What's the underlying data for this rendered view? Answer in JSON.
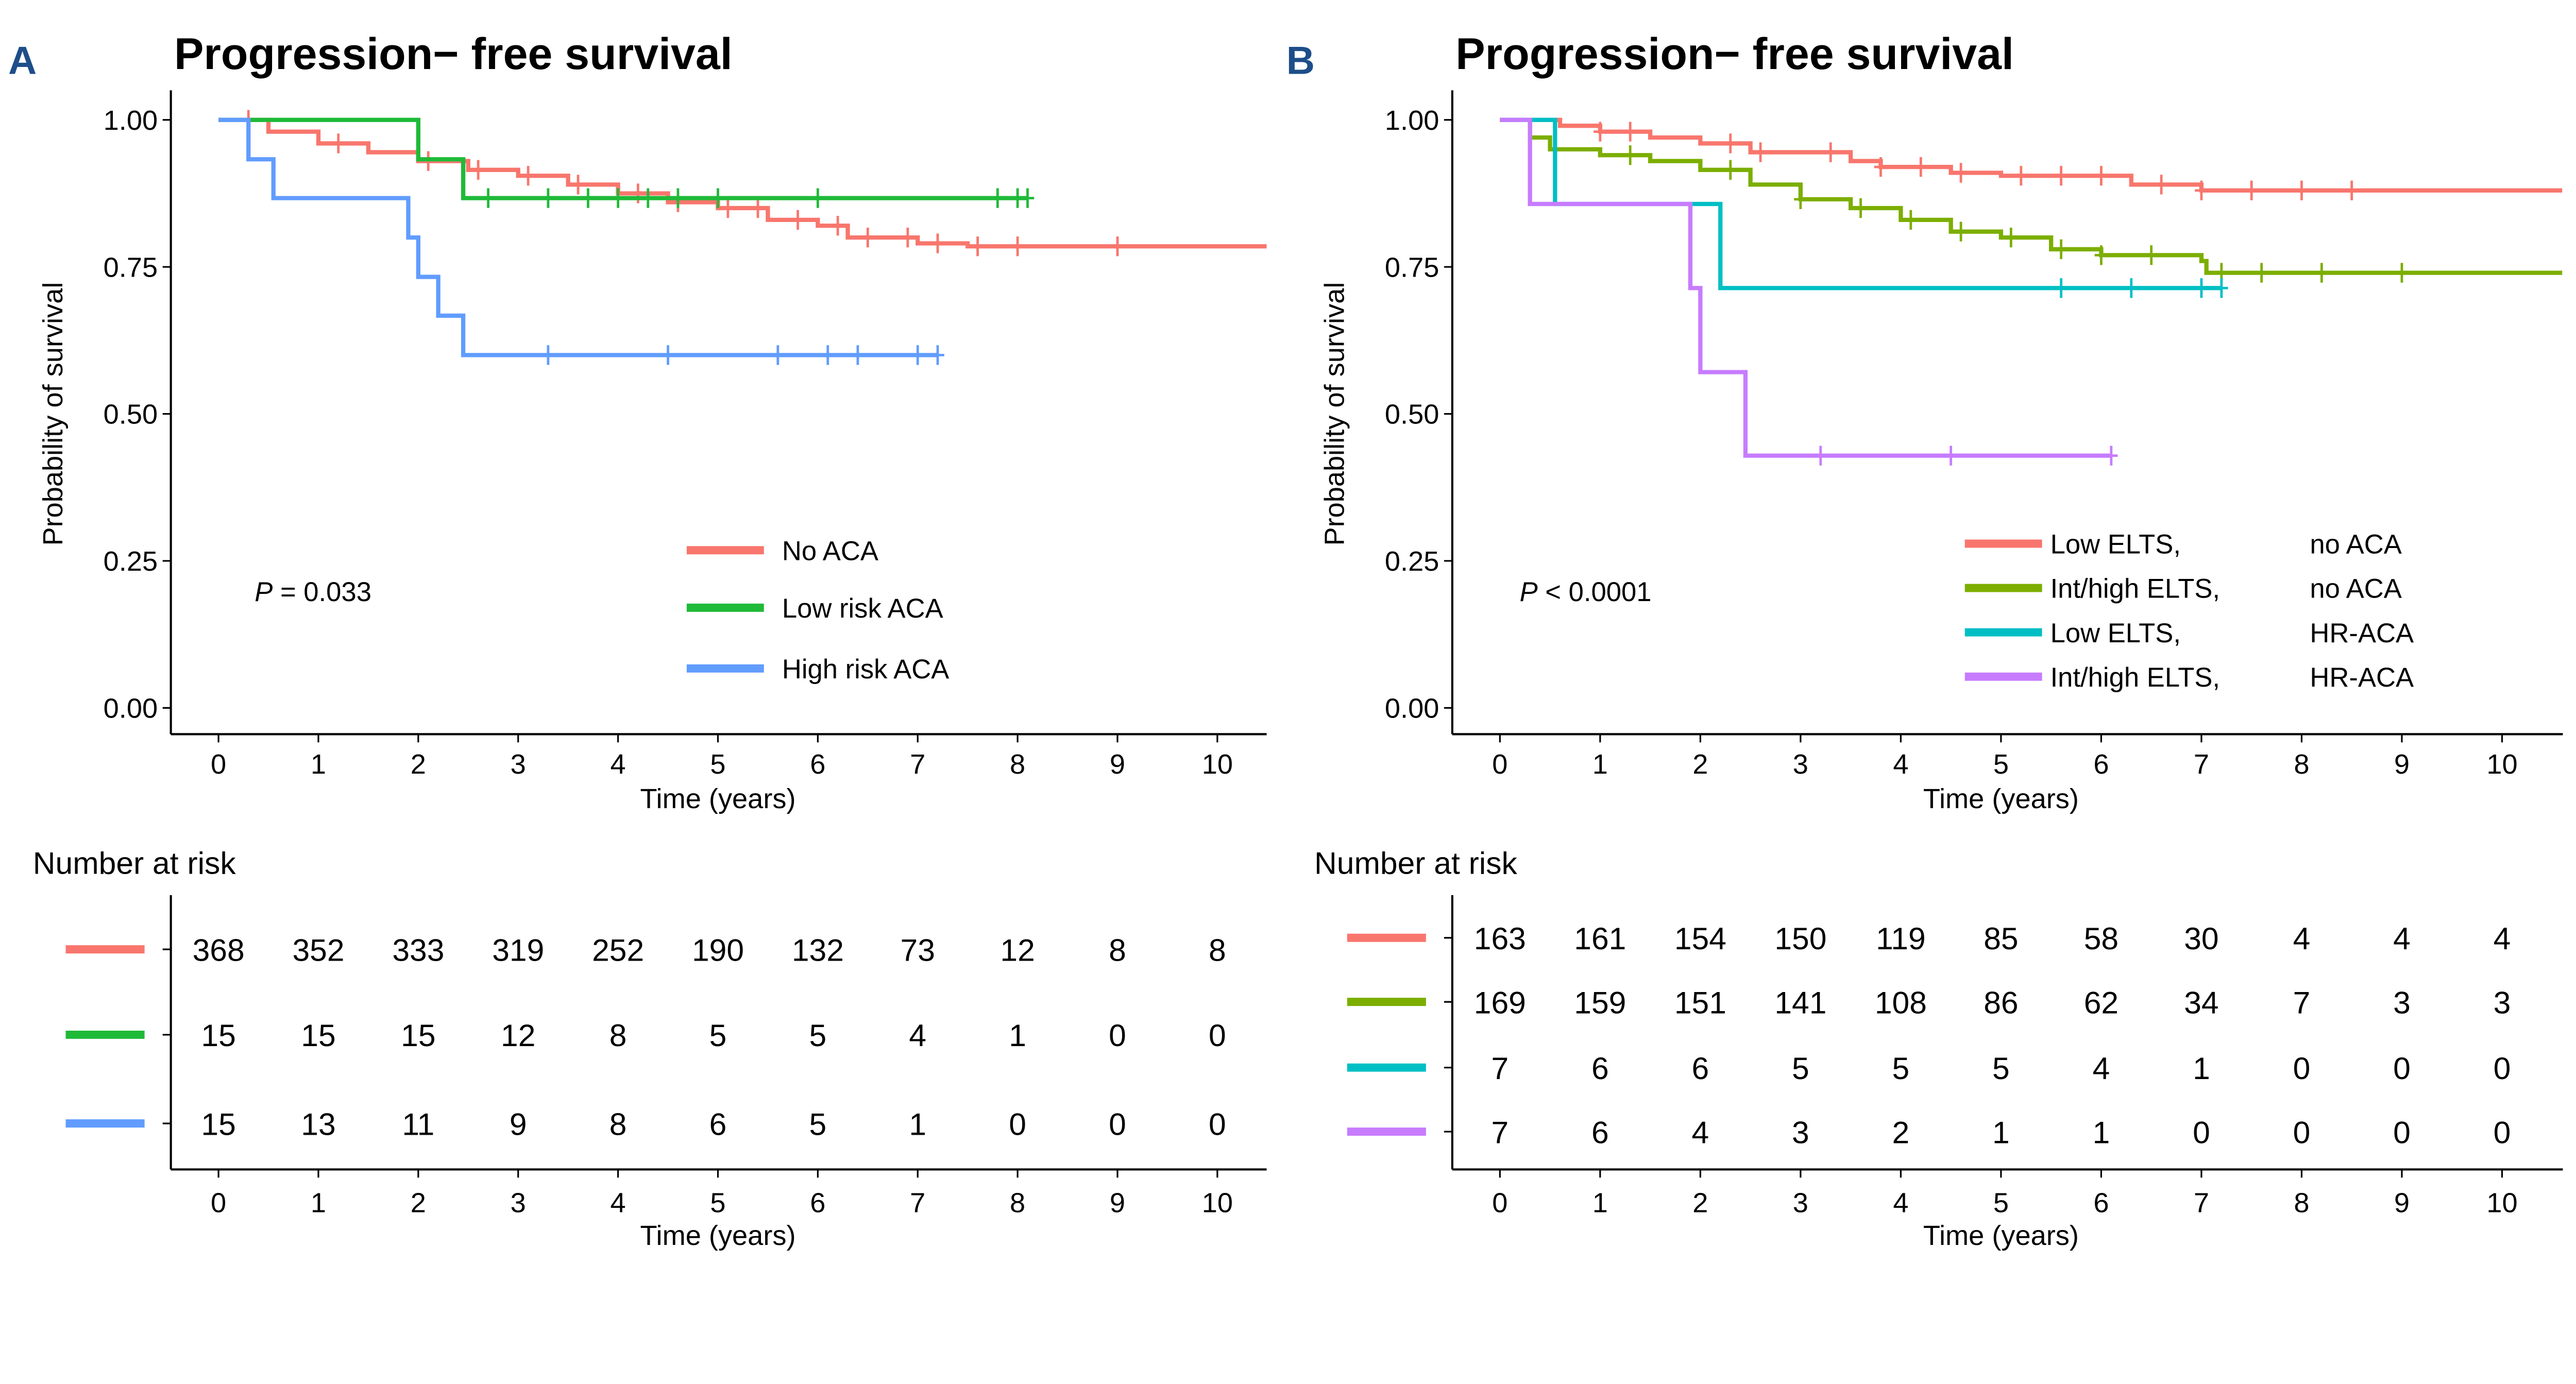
{
  "chart_data": [
    {
      "panel": "A",
      "type": "line",
      "subtype": "kaplan-meier",
      "title": "Progression− free survival",
      "xlabel": "Time (years)",
      "ylabel": "Probability of survival",
      "xlim": [
        0,
        10.6
      ],
      "ylim": [
        0,
        1
      ],
      "xticks": [
        0,
        1,
        2,
        3,
        4,
        5,
        6,
        7,
        8,
        9,
        10
      ],
      "yticks": [
        "0.00",
        "0.25",
        "0.50",
        "0.75",
        "1.00"
      ],
      "pvalue_label": "P",
      "pvalue_text": "= 0.033",
      "legend_position": "bottom-right",
      "series": [
        {
          "name": "No ACA",
          "color": "#f8766d",
          "steps": [
            [
              0,
              1
            ],
            [
              0.5,
              0.98
            ],
            [
              1,
              0.96
            ],
            [
              1.5,
              0.945
            ],
            [
              2,
              0.93
            ],
            [
              2.5,
              0.915
            ],
            [
              3,
              0.905
            ],
            [
              3.5,
              0.89
            ],
            [
              4,
              0.875
            ],
            [
              4.5,
              0.86
            ],
            [
              5,
              0.85
            ],
            [
              5.5,
              0.83
            ],
            [
              6,
              0.82
            ],
            [
              6.3,
              0.8
            ],
            [
              7,
              0.79
            ],
            [
              7.5,
              0.785
            ],
            [
              10.6,
              0.785
            ]
          ],
          "censored": [
            0.3,
            1.2,
            2.1,
            2.6,
            3.1,
            3.6,
            4.2,
            4.6,
            5.1,
            5.4,
            5.8,
            6.2,
            6.5,
            6.9,
            7.2,
            7.6,
            8,
            9
          ]
        },
        {
          "name": "Low risk ACA",
          "color": "#1fba38",
          "steps": [
            [
              0,
              1
            ],
            [
              2,
              0.933
            ],
            [
              2.45,
              0.867
            ],
            [
              8.1,
              0.867
            ]
          ],
          "censored": [
            2.7,
            3.3,
            3.7,
            4,
            4.3,
            4.6,
            5,
            6,
            7.8,
            8,
            8.1
          ]
        },
        {
          "name": "High risk ACA",
          "color": "#619cff",
          "steps": [
            [
              0,
              1
            ],
            [
              0.3,
              0.933
            ],
            [
              0.55,
              0.867
            ],
            [
              1.9,
              0.8
            ],
            [
              2,
              0.733
            ],
            [
              2.2,
              0.667
            ],
            [
              2.45,
              0.6
            ],
            [
              7.2,
              0.6
            ]
          ],
          "censored": [
            3.3,
            4.5,
            5.6,
            6.1,
            6.4,
            7.0,
            7.2
          ]
        }
      ],
      "risk_table": {
        "title": "Number at risk",
        "xlabel": "Time (years)",
        "rows": [
          [
            368,
            352,
            333,
            319,
            252,
            190,
            132,
            73,
            12,
            8,
            8
          ],
          [
            15,
            15,
            15,
            12,
            8,
            5,
            5,
            4,
            1,
            0,
            0
          ],
          [
            15,
            13,
            11,
            9,
            8,
            6,
            5,
            1,
            0,
            0,
            0
          ]
        ]
      }
    },
    {
      "panel": "B",
      "type": "line",
      "subtype": "kaplan-meier",
      "title": "Progression− free survival",
      "xlabel": "Time (years)",
      "ylabel": "Probability of survival",
      "xlim": [
        0,
        10.6
      ],
      "ylim": [
        0,
        1
      ],
      "xticks": [
        0,
        1,
        2,
        3,
        4,
        5,
        6,
        7,
        8,
        9,
        10
      ],
      "yticks": [
        "0.00",
        "0.25",
        "0.50",
        "0.75",
        "1.00"
      ],
      "pvalue_label": "P",
      "pvalue_text": "< 0.0001",
      "legend_position": "bottom-right",
      "series": [
        {
          "name": "Low ELTS,",
          "name2": "no ACA",
          "color": "#f8766d",
          "steps": [
            [
              0,
              1
            ],
            [
              0.6,
              0.99
            ],
            [
              1,
              0.98
            ],
            [
              1.5,
              0.97
            ],
            [
              2,
              0.96
            ],
            [
              2.5,
              0.945
            ],
            [
              3.5,
              0.93
            ],
            [
              3.8,
              0.92
            ],
            [
              4.5,
              0.91
            ],
            [
              5,
              0.905
            ],
            [
              6.3,
              0.89
            ],
            [
              7,
              0.88
            ],
            [
              10.6,
              0.88
            ]
          ],
          "censored": [
            1,
            1.3,
            2.3,
            2.6,
            3.3,
            3.8,
            4.2,
            4.6,
            5.2,
            5.6,
            6,
            6.6,
            7,
            7.5,
            8,
            8.5
          ]
        },
        {
          "name": "Int/high ELTS,",
          "name2": "no ACA",
          "color": "#7cae00",
          "steps": [
            [
              0,
              1
            ],
            [
              0.3,
              0.97
            ],
            [
              0.5,
              0.95
            ],
            [
              1,
              0.94
            ],
            [
              1.5,
              0.93
            ],
            [
              2,
              0.915
            ],
            [
              2.5,
              0.89
            ],
            [
              3,
              0.865
            ],
            [
              3.5,
              0.85
            ],
            [
              4,
              0.83
            ],
            [
              4.5,
              0.81
            ],
            [
              5,
              0.8
            ],
            [
              5.5,
              0.78
            ],
            [
              6,
              0.77
            ],
            [
              7,
              0.76
            ],
            [
              7.05,
              0.74
            ],
            [
              10.6,
              0.74
            ]
          ],
          "censored": [
            1.3,
            2.3,
            3,
            3.6,
            4.1,
            4.6,
            5.1,
            5.6,
            6,
            6.5,
            7.2,
            7.6,
            8.2,
            9
          ]
        },
        {
          "name": "Low ELTS,",
          "name2": "HR-ACA",
          "color": "#00bfc4",
          "steps": [
            [
              0,
              1
            ],
            [
              0.55,
              0.857
            ],
            [
              2.2,
              0.714
            ],
            [
              7.2,
              0.714
            ]
          ],
          "censored": [
            5.6,
            6.3,
            7.0,
            7.2
          ]
        },
        {
          "name": "Int/high ELTS,",
          "name2": "HR-ACA",
          "color": "#c77cff",
          "steps": [
            [
              0,
              1
            ],
            [
              0.3,
              0.857
            ],
            [
              1.9,
              0.714
            ],
            [
              2,
              0.571
            ],
            [
              2.45,
              0.429
            ],
            [
              6.1,
              0.429
            ]
          ],
          "censored": [
            3.2,
            4.5,
            6.1
          ]
        }
      ],
      "risk_table": {
        "title": "Number at risk",
        "xlabel": "Time (years)",
        "rows": [
          [
            163,
            161,
            154,
            150,
            119,
            85,
            58,
            30,
            4,
            4,
            4
          ],
          [
            169,
            159,
            151,
            141,
            108,
            86,
            62,
            34,
            7,
            3,
            3
          ],
          [
            7,
            6,
            6,
            5,
            5,
            5,
            4,
            1,
            0,
            0,
            0
          ],
          [
            7,
            6,
            4,
            3,
            2,
            1,
            1,
            0,
            0,
            0,
            0
          ]
        ]
      }
    }
  ],
  "panel_labels": [
    "A",
    "B"
  ]
}
